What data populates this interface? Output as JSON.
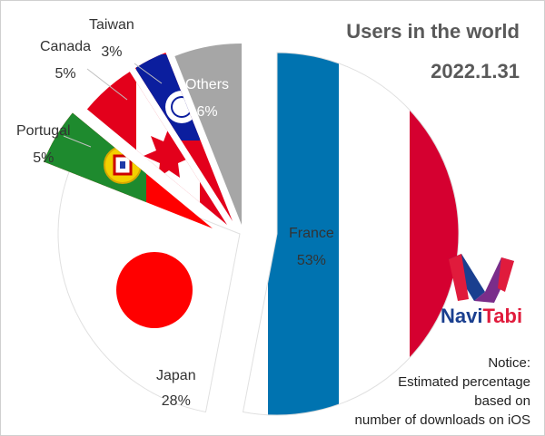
{
  "chart_data": {
    "type": "pie",
    "title": "Users in the world",
    "subtitle": "2022.1.31",
    "start_angle_deg": 0,
    "direction": "clockwise",
    "slices": [
      {
        "label": "France",
        "value": 53,
        "display": "53%",
        "color": "#d50030"
      },
      {
        "label": "Japan",
        "value": 28,
        "display": "28%",
        "color": "#ffffff"
      },
      {
        "label": "Portugal",
        "value": 5,
        "display": "5%",
        "color": "#1e8a2e"
      },
      {
        "label": "Canada",
        "value": 5,
        "display": "5%",
        "color": "#e3001b"
      },
      {
        "label": "Taiwan",
        "value": 3,
        "display": "3%",
        "color": "#0b1e9e"
      },
      {
        "label": "Others",
        "value": 6,
        "display": "6%",
        "color": "#a6a6a6"
      }
    ]
  },
  "logo": {
    "part1": "Navi",
    "part2": "Tabi"
  },
  "notice": [
    "Notice:",
    "Estimated percentage",
    "based on",
    "number of downloads on iOS"
  ]
}
